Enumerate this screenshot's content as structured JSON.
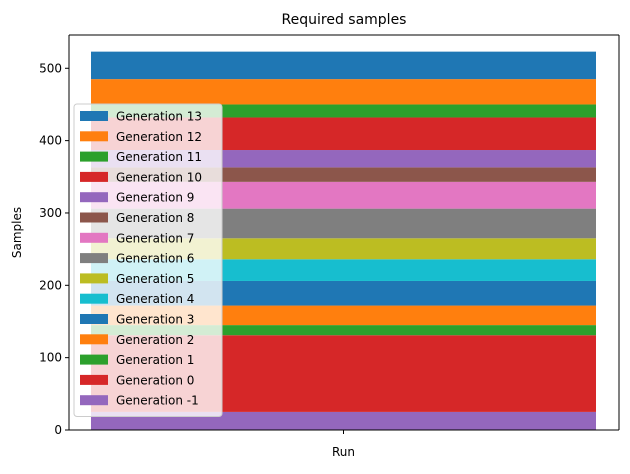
{
  "chart_data": {
    "type": "bar",
    "stacked": true,
    "title": "Required samples",
    "xlabel": "",
    "ylabel": "Samples",
    "categories": [
      "Run"
    ],
    "ylim": [
      0,
      546
    ],
    "yticks": [
      0,
      100,
      200,
      300,
      400,
      500
    ],
    "grid": false,
    "legend_position": "left",
    "series": [
      {
        "name": "Generation -1",
        "values": [
          25
        ],
        "color": "#9467bd"
      },
      {
        "name": "Generation 0",
        "values": [
          106
        ],
        "color": "#d62728"
      },
      {
        "name": "Generation 1",
        "values": [
          14
        ],
        "color": "#2ca02c"
      },
      {
        "name": "Generation 2",
        "values": [
          27
        ],
        "color": "#ff7f0e"
      },
      {
        "name": "Generation 3",
        "values": [
          34
        ],
        "color": "#1f77b4"
      },
      {
        "name": "Generation 4",
        "values": [
          30
        ],
        "color": "#17becf"
      },
      {
        "name": "Generation 5",
        "values": [
          29
        ],
        "color": "#bcbd22"
      },
      {
        "name": "Generation 6",
        "values": [
          41
        ],
        "color": "#7f7f7f"
      },
      {
        "name": "Generation 7",
        "values": [
          37
        ],
        "color": "#e377c2"
      },
      {
        "name": "Generation 8",
        "values": [
          20
        ],
        "color": "#8c564b"
      },
      {
        "name": "Generation 9",
        "values": [
          24
        ],
        "color": "#9467bd"
      },
      {
        "name": "Generation 10",
        "values": [
          45
        ],
        "color": "#d62728"
      },
      {
        "name": "Generation 11",
        "values": [
          18
        ],
        "color": "#2ca02c"
      },
      {
        "name": "Generation 12",
        "values": [
          35
        ],
        "color": "#ff7f0e"
      },
      {
        "name": "Generation 13",
        "values": [
          38
        ],
        "color": "#1f77b4"
      }
    ]
  }
}
